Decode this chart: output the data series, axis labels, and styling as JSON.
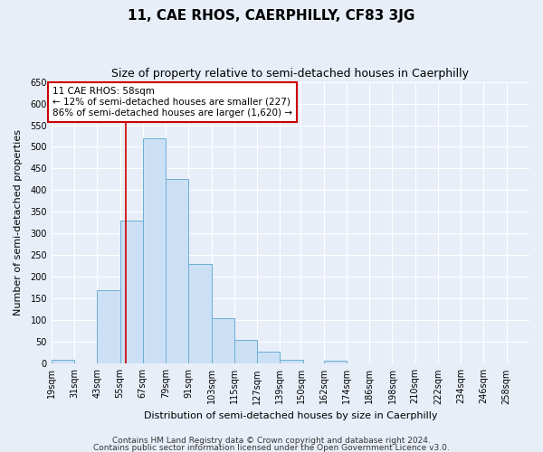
{
  "title": "11, CAE RHOS, CAERPHILLY, CF83 3JG",
  "subtitle": "Size of property relative to semi-detached houses in Caerphilly",
  "xlabel": "Distribution of semi-detached houses by size in Caerphilly",
  "ylabel": "Number of semi-detached properties",
  "bar_color": "#cce0f5",
  "bar_edge_color": "#6aaed6",
  "bin_starts": [
    19,
    31,
    43,
    55,
    67,
    79,
    91,
    103,
    115,
    127,
    139,
    150,
    162,
    174,
    186,
    198,
    210,
    222,
    234,
    246
  ],
  "bin_labels": [
    "19sqm",
    "31sqm",
    "43sqm",
    "55sqm",
    "67sqm",
    "79sqm",
    "91sqm",
    "103sqm",
    "115sqm",
    "127sqm",
    "139sqm",
    "150sqm",
    "162sqm",
    "174sqm",
    "186sqm",
    "198sqm",
    "210sqm",
    "222sqm",
    "234sqm",
    "246sqm",
    "258sqm"
  ],
  "values": [
    10,
    0,
    170,
    330,
    520,
    425,
    230,
    105,
    55,
    28,
    8,
    0,
    7,
    0,
    0,
    0,
    0,
    0,
    0,
    0
  ],
  "ylim": [
    0,
    650
  ],
  "yticks": [
    0,
    50,
    100,
    150,
    200,
    250,
    300,
    350,
    400,
    450,
    500,
    550,
    600,
    650
  ],
  "property_line_x": 58,
  "annotation_title": "11 CAE RHOS: 58sqm",
  "annotation_line1": "← 12% of semi-detached houses are smaller (227)",
  "annotation_line2": "86% of semi-detached houses are larger (1,620) →",
  "annotation_box_color": "#ffffff",
  "annotation_box_edge": "#cc0000",
  "vline_color": "#cc0000",
  "footer1": "Contains HM Land Registry data © Crown copyright and database right 2024.",
  "footer2": "Contains public sector information licensed under the Open Government Licence v3.0.",
  "background_color": "#e8eef8",
  "plot_bg_color": "#e8eef8",
  "grid_color": "#ffffff",
  "title_fontsize": 11,
  "subtitle_fontsize": 9,
  "ylabel_fontsize": 8,
  "xlabel_fontsize": 8,
  "tick_fontsize": 7,
  "footer_fontsize": 6.5
}
